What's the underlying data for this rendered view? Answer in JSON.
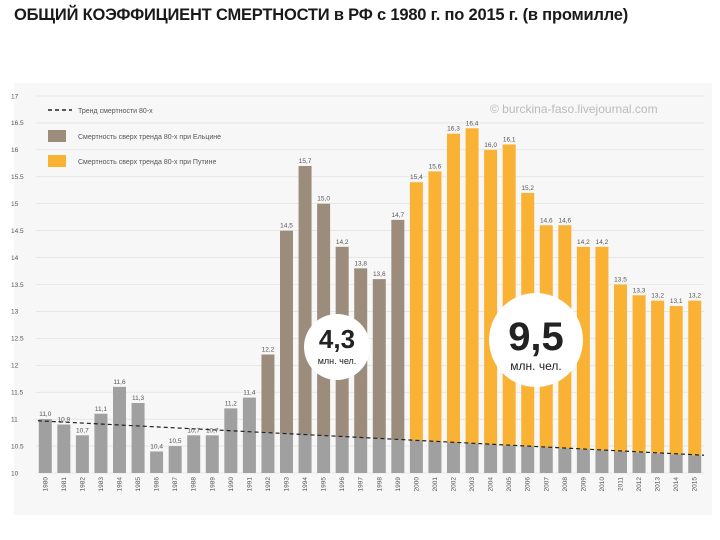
{
  "title": "ОБЩИЙ КОЭФФИЦИЕНТ СМЕРТНОСТИ в РФ с 1980 г. по 2015 г. (в промилле)",
  "watermark": "© burckina-faso.livejournal.com",
  "legend": [
    {
      "label": "Тренд смертности 80-х",
      "kind": "dash",
      "color": "#222222"
    },
    {
      "label": "Смертность сверх тренда 80-х при Ельцине",
      "kind": "swatch",
      "color": "#9c8c7c"
    },
    {
      "label": "Смертность сверх тренда 80-х при Путине",
      "kind": "swatch",
      "color": "#f9b233"
    }
  ],
  "callouts": [
    {
      "number": "4,3",
      "unit": "млн. чел."
    },
    {
      "number": "9,5",
      "unit": "млн. чел."
    }
  ],
  "colors": {
    "base": "#a0a0a0",
    "yeltsin": "#9c8c7c",
    "putin": "#f9b233",
    "grid": "#dddddd"
  },
  "chart_data": {
    "type": "bar",
    "ylim": [
      10,
      17
    ],
    "yticks": [
      "10",
      "10.5",
      "11",
      "11.5",
      "12",
      "12.5",
      "13",
      "13.5",
      "14",
      "14.5",
      "15",
      "15.5",
      "16",
      "16.5",
      "17"
    ],
    "categories": [
      "1980",
      "1981",
      "1982",
      "1983",
      "1984",
      "1985",
      "1986",
      "1987",
      "1988",
      "1989",
      "1990",
      "1991",
      "1992",
      "1993",
      "1994",
      "1995",
      "1996",
      "1997",
      "1998",
      "1999",
      "2000",
      "2001",
      "2002",
      "2003",
      "2004",
      "2005",
      "2006",
      "2007",
      "2008",
      "2009",
      "2010",
      "2011",
      "2012",
      "2013",
      "2014",
      "2015"
    ],
    "values": [
      11.0,
      10.9,
      10.7,
      11.1,
      11.6,
      11.3,
      10.4,
      10.5,
      10.7,
      10.7,
      11.2,
      11.4,
      12.2,
      14.5,
      15.7,
      15.0,
      14.2,
      13.8,
      13.6,
      14.7,
      15.4,
      15.6,
      16.3,
      16.4,
      16.0,
      16.1,
      15.2,
      14.6,
      14.6,
      14.2,
      14.2,
      13.5,
      13.3,
      13.2,
      13.1,
      13.2
    ],
    "data_labels": [
      "11,0",
      "10,9",
      "10,7",
      "11,1",
      "11,6",
      "11,3",
      "10,4",
      "10,5",
      "10,7",
      "10,7",
      "11,2",
      "11,4",
      "12,2",
      "14,5",
      "15,7",
      "15,0",
      "14,2",
      "13,8",
      "13,6",
      "14,7",
      "15,4",
      "15,6",
      "16,3",
      "16,4",
      "16,0",
      "16,1",
      "15,2",
      "14,6",
      "14,6",
      "14,2",
      "14,2",
      "13,5",
      "13,3",
      "13,2",
      "13,1",
      "13,2"
    ],
    "trend_start": 10.97,
    "trend_end": 10.33,
    "segments": [
      "base",
      "base",
      "base",
      "base",
      "base",
      "base",
      "base",
      "base",
      "base",
      "base",
      "base",
      "base",
      "yeltsin",
      "yeltsin",
      "yeltsin",
      "yeltsin",
      "yeltsin",
      "yeltsin",
      "yeltsin",
      "yeltsin",
      "putin",
      "putin",
      "putin",
      "putin",
      "putin",
      "putin",
      "putin",
      "putin",
      "putin",
      "putin",
      "putin",
      "putin",
      "putin",
      "putin",
      "putin",
      "putin"
    ]
  }
}
